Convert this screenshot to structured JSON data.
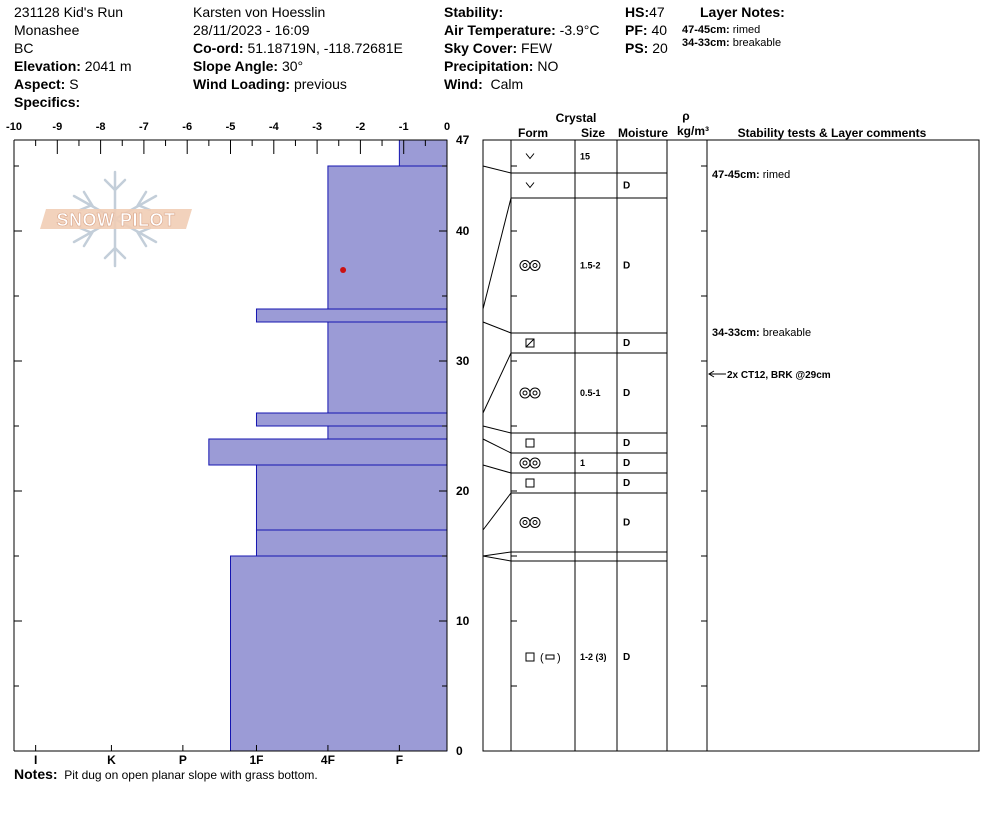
{
  "header": {
    "pit_name": "231128 Kid's Run",
    "range": "Monashee",
    "region": "BC",
    "elevation_label": "Elevation:",
    "elevation": "2041 m",
    "aspect_label": "Aspect:",
    "aspect": "S",
    "specifics_label": "Specifics:",
    "observer": "Karsten  von Hoesslin",
    "datetime": "28/11/2023 - 16:09",
    "coord_label": "Co-ord:",
    "coord": "51.18719N, -118.72681E",
    "slope_label": "Slope Angle:",
    "slope": "30°",
    "wind_loading_label": "Wind Loading:",
    "wind_loading": "previous",
    "stability_label": "Stability:",
    "air_temp_label": "Air Temperature:",
    "air_temp": "-3.9°C",
    "sky_label": "Sky Cover:",
    "sky": "FEW",
    "precip_label": "Precipitation:",
    "precip": "NO",
    "wind_label": "Wind:",
    "wind": "Calm",
    "hs_label": "HS:",
    "hs": "47",
    "pf_label": "PF:",
    "pf": "40",
    "ps_label": "PS:",
    "ps": "20",
    "layer_notes_title": "Layer Notes:",
    "layer_notes": [
      {
        "range": "47-45cm:",
        "text": "rimed"
      },
      {
        "range": "34-33cm:",
        "text": "breakable"
      }
    ]
  },
  "logo_text": "SNOW PILOT",
  "colors": {
    "bar_fill": "#9b9bd6",
    "bar_edge": "#1515b0",
    "point": "#cc1111"
  },
  "chart_data": {
    "type": "bar",
    "orientation": "horizontal",
    "x_range": [
      -10,
      0
    ],
    "y_range": [
      0,
      47
    ],
    "x_ticks": [
      "-10",
      "-9",
      "-8",
      "-7",
      "-6",
      "-5",
      "-4",
      "-3",
      "-2",
      "-1",
      "0"
    ],
    "hardness_labels": [
      {
        "label": "I",
        "x": -9.5
      },
      {
        "label": "K",
        "x": -7.75
      },
      {
        "label": "P",
        "x": -6.1
      },
      {
        "label": "1F",
        "x": -4.4
      },
      {
        "label": "4F",
        "x": -2.75
      },
      {
        "label": "F",
        "x": -1.1
      }
    ],
    "y_tick_labels": [
      "0",
      "10",
      "20",
      "30",
      "40",
      "47"
    ],
    "y_tick_values": [
      0,
      10,
      20,
      30,
      40,
      47
    ],
    "layers": [
      {
        "top": 47,
        "bottom": 45,
        "hardness": -1.1
      },
      {
        "top": 45,
        "bottom": 34,
        "hardness": -2.75
      },
      {
        "top": 34,
        "bottom": 33,
        "hardness": -4.4
      },
      {
        "top": 33,
        "bottom": 26,
        "hardness": -2.75
      },
      {
        "top": 26,
        "bottom": 25,
        "hardness": -4.4
      },
      {
        "top": 25,
        "bottom": 24,
        "hardness": -2.75
      },
      {
        "top": 24,
        "bottom": 22,
        "hardness": -5.5
      },
      {
        "top": 22,
        "bottom": 17,
        "hardness": -4.4
      },
      {
        "top": 17,
        "bottom": 15,
        "hardness": -4.4
      },
      {
        "top": 15,
        "bottom": 0,
        "hardness": -5.0
      }
    ],
    "temperature_points": [
      {
        "depth": 37,
        "temp": -2.4
      }
    ]
  },
  "table": {
    "headers": {
      "crystal": "Crystal",
      "form": "Form",
      "size": "Size",
      "moisture": "Moisture",
      "rho": "ρ",
      "density_unit": "kg/m³",
      "comments": "Stability tests & Layer comments"
    },
    "rows": [
      {
        "top": 47,
        "bottom": 45,
        "form": "surface-hoar-icon",
        "size": "15",
        "moisture": ""
      },
      {
        "top": 45,
        "bottom": 34,
        "form": "surface-hoar-icon",
        "size": "",
        "moisture": "D"
      },
      {
        "top": 34,
        "bottom": 33,
        "form": "rounded-grains-icon",
        "size": "1.5-2",
        "moisture": "D"
      },
      {
        "top": 33,
        "bottom": 26,
        "form": "faceted-rounded-icon",
        "size": "",
        "moisture": "D"
      },
      {
        "top": 26,
        "bottom": 25,
        "form": "rounded-grains-icon",
        "size": "0.5-1",
        "moisture": "D"
      },
      {
        "top": 25,
        "bottom": 24,
        "form": "faceted-icon",
        "size": "",
        "moisture": "D"
      },
      {
        "top": 24,
        "bottom": 22,
        "form": "rounded-grains-icon",
        "size": "1",
        "moisture": "D"
      },
      {
        "top": 22,
        "bottom": 17,
        "form": "faceted-icon",
        "size": "",
        "moisture": "D"
      },
      {
        "top": 17,
        "bottom": 15,
        "form": "rounded-grains-icon",
        "size": "",
        "moisture": "D"
      },
      {
        "top": 15,
        "bottom": 0,
        "form": "faceted-icon",
        "size": "1-2 (3)",
        "moisture": "D"
      }
    ],
    "layer_comments": [
      {
        "depth": 46,
        "range": "47-45cm:",
        "text": "rimed"
      },
      {
        "depth": 33.5,
        "range": "34-33cm:",
        "text": "breakable"
      }
    ],
    "stability_tests": [
      {
        "depth": 29,
        "text": "2x CT12, BRK @29cm"
      }
    ]
  },
  "notes": {
    "label": "Notes:",
    "text": "Pit dug on open planar slope with grass bottom."
  }
}
